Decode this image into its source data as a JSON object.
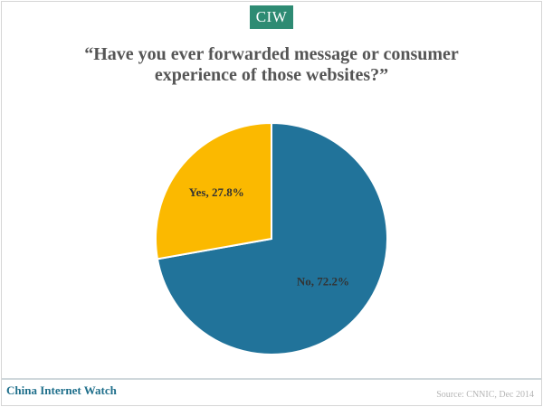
{
  "header": {
    "logo_text": "CIW"
  },
  "chart_data": {
    "type": "pie",
    "title_line1": "“Have you ever forwarded message or consumer",
    "title_line2": "experience of those websites?”",
    "slices": [
      {
        "label": "No, 72.2%",
        "category": "No",
        "value": 72.2,
        "color": "#21739a"
      },
      {
        "label": "Yes, 27.8%",
        "category": "Yes",
        "value": 27.8,
        "color": "#fbb900"
      }
    ]
  },
  "footer": {
    "brand": "China Internet Watch",
    "source": "Source: CNNIC, Dec 2014"
  },
  "colors": {
    "logo_bg": "#2e8b73",
    "title": "#555555",
    "brand": "#1f6f8b"
  }
}
